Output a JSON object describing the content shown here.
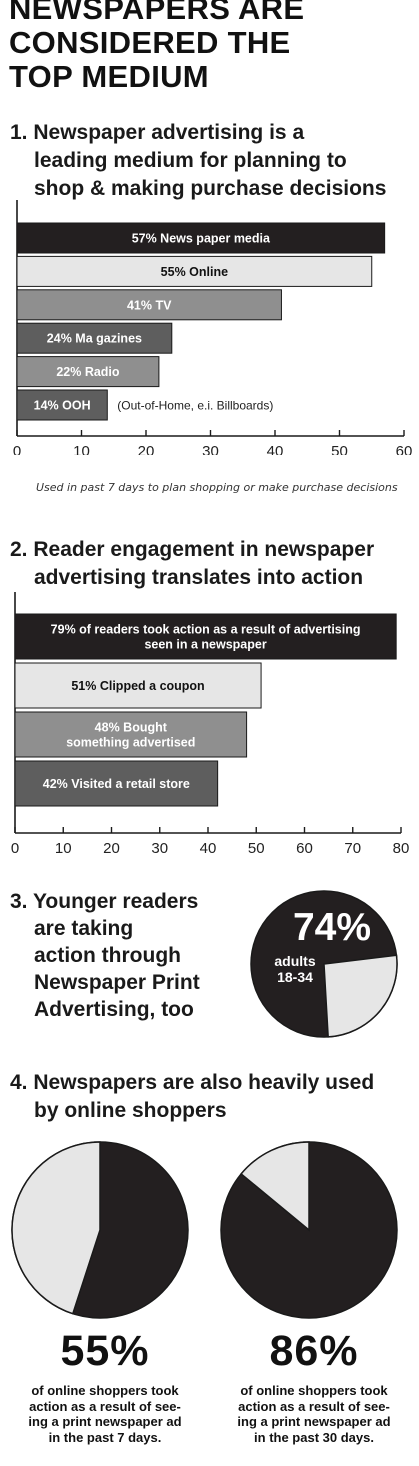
{
  "main_title": [
    "NEWSPAPERS ARE",
    "CONSIDERED THE",
    "TOP MEDIUM"
  ],
  "colors": {
    "dark": "#231f20",
    "light": "#e6e6e6",
    "mid": "#8f8f8f",
    "dim": "#5e5e5e",
    "stroke": "#1a1a1a"
  },
  "chart_data": [
    {
      "type": "bar",
      "orientation": "horizontal",
      "title": [
        "1. Newspaper advertising is a",
        "leading medium for planning to",
        "shop & making purchase decisions"
      ],
      "bars": [
        {
          "label": "57% News paper media",
          "value": 57,
          "shade": "dark"
        },
        {
          "label": "55% Online",
          "value": 55,
          "shade": "light"
        },
        {
          "label": "41% TV",
          "value": 41,
          "shade": "mid"
        },
        {
          "label": "24% Ma gazines",
          "value": 24,
          "shade": "dim"
        },
        {
          "label": "22% Radio",
          "value": 22,
          "shade": "mid"
        },
        {
          "label": "14% OOH",
          "value": 14,
          "shade": "dim",
          "note": "(Out-of-Home, e.i. Billboards)"
        }
      ],
      "xlim": [
        0,
        60
      ],
      "xticks": [
        "0",
        "10",
        "20",
        "30",
        "40",
        "50",
        "60"
      ],
      "caption": "Used in past 7 days to plan shopping or make purchase decisions"
    },
    {
      "type": "bar",
      "orientation": "horizontal",
      "title": [
        "2. Reader engagement in newspaper",
        "advertising translates into action"
      ],
      "bars": [
        {
          "label": [
            "79% of readers took action as a result of advertising",
            "seen in a newspaper"
          ],
          "value": 79,
          "shade": "dark"
        },
        {
          "label": [
            "51% Clipped a coupon"
          ],
          "value": 51,
          "shade": "light"
        },
        {
          "label": [
            "48% Bought",
            "something advertised"
          ],
          "value": 48,
          "shade": "mid"
        },
        {
          "label": [
            "42% Visited a retail store"
          ],
          "value": 42,
          "shade": "dim"
        }
      ],
      "xlim": [
        0,
        80
      ],
      "xticks": [
        "0",
        "10",
        "20",
        "30",
        "40",
        "50",
        "60",
        "70",
        "80"
      ]
    },
    {
      "type": "pie",
      "title": [
        "3. Younger readers",
        "are taking",
        "action through",
        "Newspaper Print",
        "Advertising, too"
      ],
      "value": 74,
      "value_label": "74%",
      "sublabel": [
        "adults",
        "18-34"
      ]
    },
    {
      "type": "pie",
      "title": [
        "4. Newspapers are also heavily used",
        "by online shoppers"
      ],
      "pies": [
        {
          "value": 55,
          "value_label": "55%",
          "desc": [
            "of online shoppers took",
            "action as a result of see-",
            "ing a print newspaper ad",
            "in the past 7 days."
          ]
        },
        {
          "value": 86,
          "value_label": "86%",
          "desc": [
            "of online shoppers took",
            "action as a result of see-",
            "ing a print newspaper ad",
            "in the past 30 days."
          ]
        }
      ]
    }
  ]
}
